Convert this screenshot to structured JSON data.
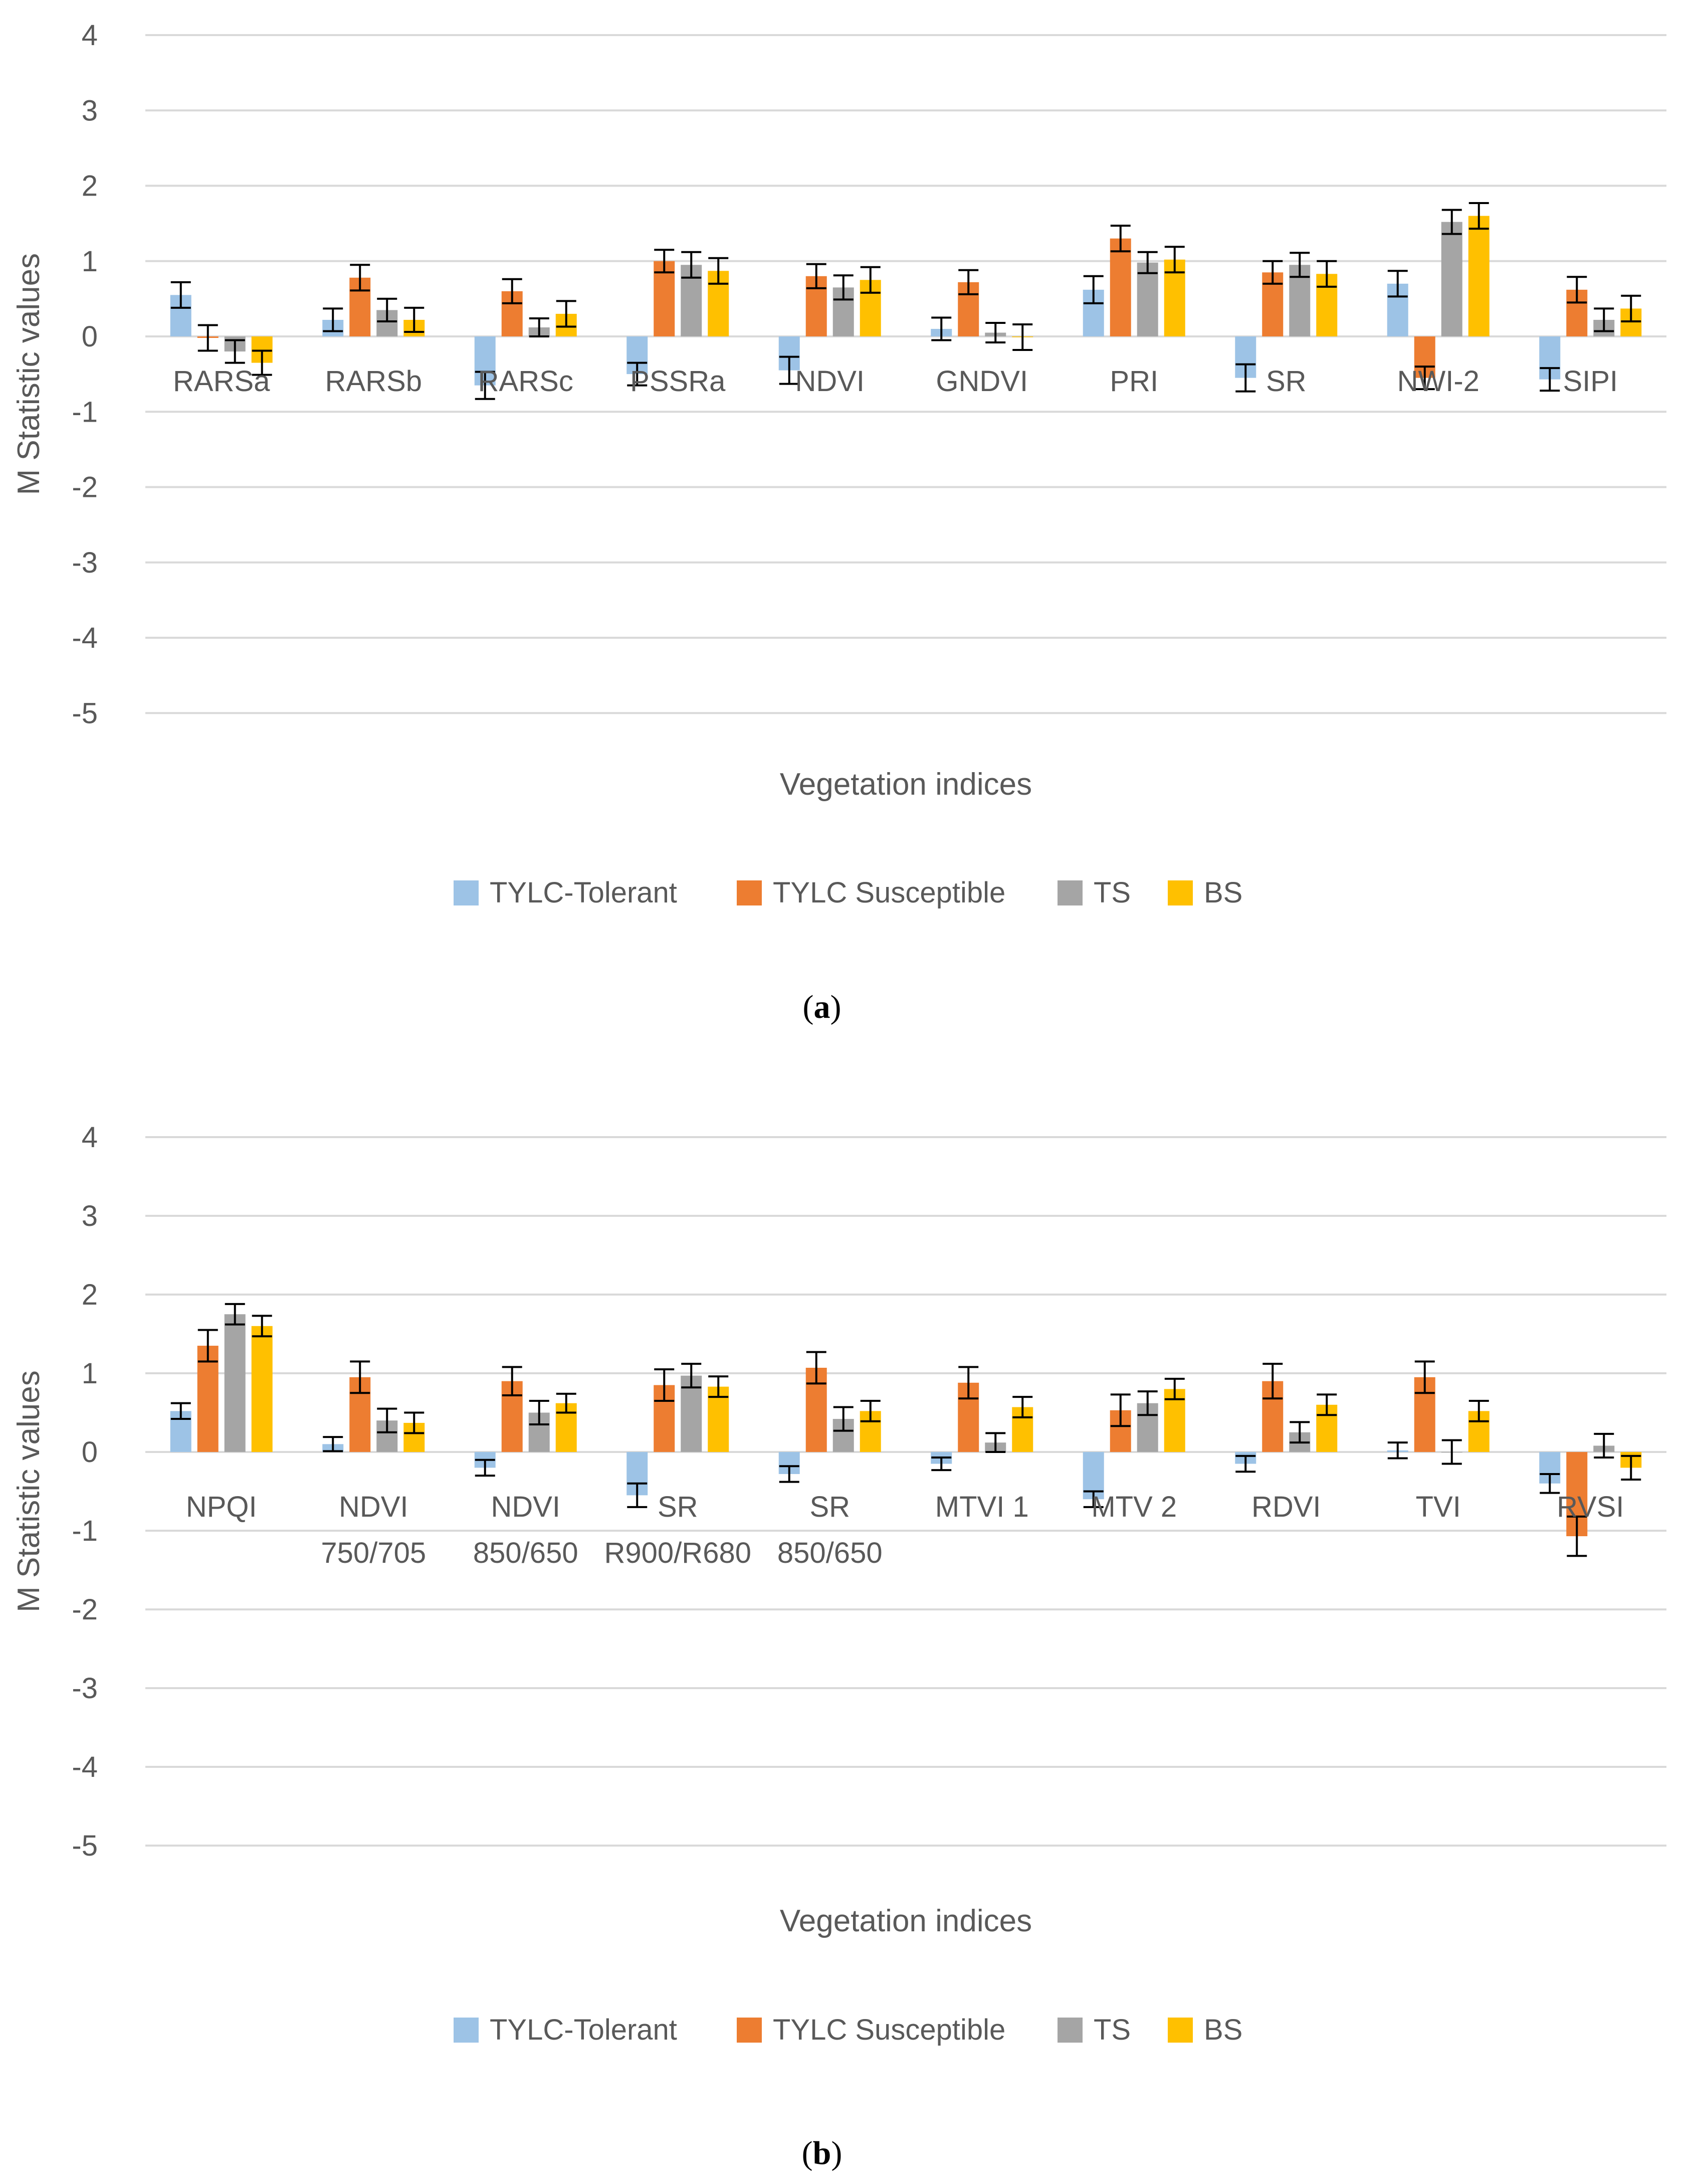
{
  "colors": {
    "tolerant": "#9DC3E6",
    "susceptible": "#ED7D31",
    "ts": "#A5A5A5",
    "bs": "#FFC000",
    "grid": "#D9D9D9",
    "errorbar": "#000000"
  },
  "chart_data": [
    {
      "type": "bar",
      "panel": "(a)",
      "panel_letter": "a",
      "xlabel": "Vegetation indices",
      "ylabel": "M Statistic values",
      "ylim": [
        -5,
        4
      ],
      "yticks": [
        "4",
        "3",
        "2",
        "1",
        "0",
        "-1",
        "-2",
        "-3",
        "-4",
        "-5"
      ],
      "grid": true,
      "legend_position": "bottom",
      "categories": [
        [
          "RARSa"
        ],
        [
          "RARSb"
        ],
        [
          "RARSc"
        ],
        [
          "PSSRa"
        ],
        [
          "NDVI"
        ],
        [
          "GNDVI"
        ],
        [
          "PRI"
        ],
        [
          "SR"
        ],
        [
          "NWI-2"
        ],
        [
          "SIPI"
        ]
      ],
      "series": [
        {
          "name": "TYLC-Tolerant",
          "values": [
            0.55,
            0.22,
            -0.65,
            -0.5,
            -0.45,
            0.1,
            0.62,
            -0.55,
            0.7,
            -0.57
          ],
          "errors": [
            0.17,
            0.15,
            0.18,
            0.15,
            0.18,
            0.15,
            0.18,
            0.18,
            0.17,
            0.15
          ]
        },
        {
          "name": "TYLC Susceptible",
          "values": [
            -0.02,
            0.78,
            0.6,
            1.0,
            0.8,
            0.72,
            1.3,
            0.85,
            -0.55,
            0.62
          ],
          "errors": [
            0.17,
            0.17,
            0.16,
            0.15,
            0.16,
            0.16,
            0.17,
            0.15,
            0.15,
            0.17
          ]
        },
        {
          "name": "TS",
          "values": [
            -0.2,
            0.35,
            0.12,
            0.95,
            0.65,
            0.05,
            0.98,
            0.95,
            1.52,
            0.22
          ],
          "errors": [
            0.15,
            0.15,
            0.12,
            0.17,
            0.16,
            0.13,
            0.14,
            0.16,
            0.16,
            0.15
          ]
        },
        {
          "name": "BS",
          "values": [
            -0.35,
            0.22,
            0.3,
            0.87,
            0.75,
            -0.01,
            1.02,
            0.83,
            1.6,
            0.37
          ],
          "errors": [
            0.16,
            0.16,
            0.17,
            0.17,
            0.17,
            0.17,
            0.17,
            0.17,
            0.17,
            0.17
          ]
        }
      ]
    },
    {
      "type": "bar",
      "panel": "(b)",
      "panel_letter": "b",
      "xlabel": "Vegetation indices",
      "ylabel": "M Statistic values",
      "ylim": [
        -5,
        4
      ],
      "yticks": [
        "4",
        "3",
        "2",
        "1",
        "0",
        "-1",
        "-2",
        "-3",
        "-4",
        "-5"
      ],
      "grid": true,
      "legend_position": "bottom",
      "categories": [
        [
          "NPQI"
        ],
        [
          "NDVI",
          "750/705"
        ],
        [
          "NDVI",
          "850/650"
        ],
        [
          "SR",
          "R900/R680"
        ],
        [
          "SR",
          "850/650"
        ],
        [
          "MTVI 1"
        ],
        [
          "MTV 2"
        ],
        [
          "RDVI"
        ],
        [
          "TVI"
        ],
        [
          "RVSI"
        ]
      ],
      "series": [
        {
          "name": "TYLC-Tolerant",
          "values": [
            0.52,
            0.1,
            -0.2,
            -0.55,
            -0.28,
            -0.15,
            -0.6,
            -0.15,
            0.02,
            -0.4
          ],
          "errors": [
            0.1,
            0.09,
            0.1,
            0.15,
            0.1,
            0.08,
            0.1,
            0.1,
            0.1,
            0.12
          ]
        },
        {
          "name": "TYLC Susceptible",
          "values": [
            1.35,
            0.95,
            0.9,
            0.85,
            1.07,
            0.88,
            0.53,
            0.9,
            0.95,
            -1.07
          ],
          "errors": [
            0.2,
            0.2,
            0.18,
            0.2,
            0.2,
            0.2,
            0.2,
            0.22,
            0.2,
            0.25
          ]
        },
        {
          "name": "TS",
          "values": [
            1.75,
            0.4,
            0.5,
            0.97,
            0.42,
            0.12,
            0.62,
            0.25,
            0.0,
            0.08
          ],
          "errors": [
            0.13,
            0.15,
            0.15,
            0.15,
            0.15,
            0.12,
            0.15,
            0.13,
            0.15,
            0.15
          ]
        },
        {
          "name": "BS",
          "values": [
            1.6,
            0.37,
            0.62,
            0.83,
            0.52,
            0.57,
            0.8,
            0.6,
            0.52,
            -0.2
          ],
          "errors": [
            0.13,
            0.13,
            0.12,
            0.13,
            0.13,
            0.13,
            0.13,
            0.13,
            0.13,
            0.15
          ]
        }
      ]
    }
  ]
}
